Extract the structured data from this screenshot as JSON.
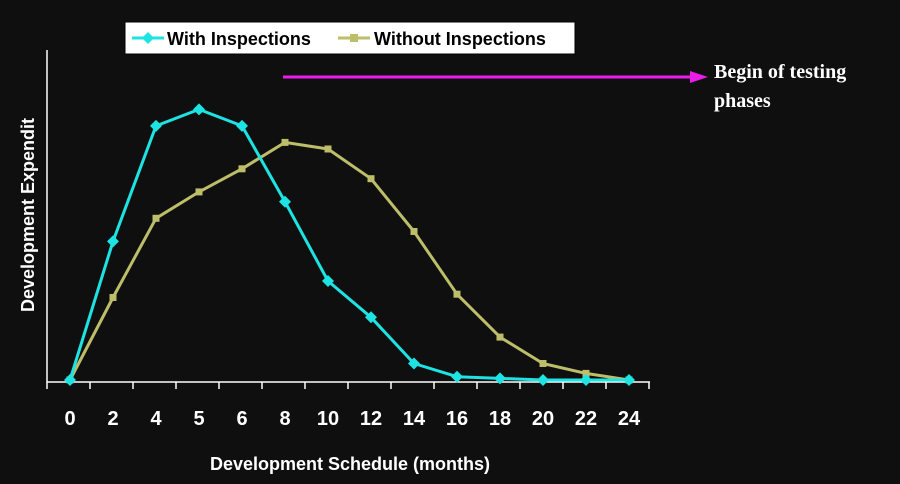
{
  "chart_data": {
    "type": "line",
    "categories": [
      "0",
      "2",
      "4",
      "5",
      "6",
      "8",
      "10",
      "12",
      "14",
      "16",
      "18",
      "20",
      "22",
      "24"
    ],
    "series": [
      {
        "name": "With Inspections",
        "color": "#1ee3e3",
        "marker": "diamond",
        "values": [
          0,
          42,
          77,
          82,
          77,
          54,
          30,
          19,
          5,
          1,
          0.5,
          0,
          0,
          0
        ]
      },
      {
        "name": "Without Inspections",
        "color": "#bdbd6a",
        "marker": "square",
        "values": [
          0,
          25,
          49,
          57,
          64,
          72,
          70,
          61,
          45,
          26,
          13,
          5,
          2,
          0
        ]
      }
    ],
    "xlabel": "Development Schedule (months)",
    "ylabel": "Development Expendit",
    "ylim": [
      0,
      100
    ],
    "grid": false,
    "legend_position": "top",
    "annotation": {
      "text_line1": "Begin of testing",
      "text_line2": "phases",
      "arrow_color": "#e81ee8"
    }
  }
}
